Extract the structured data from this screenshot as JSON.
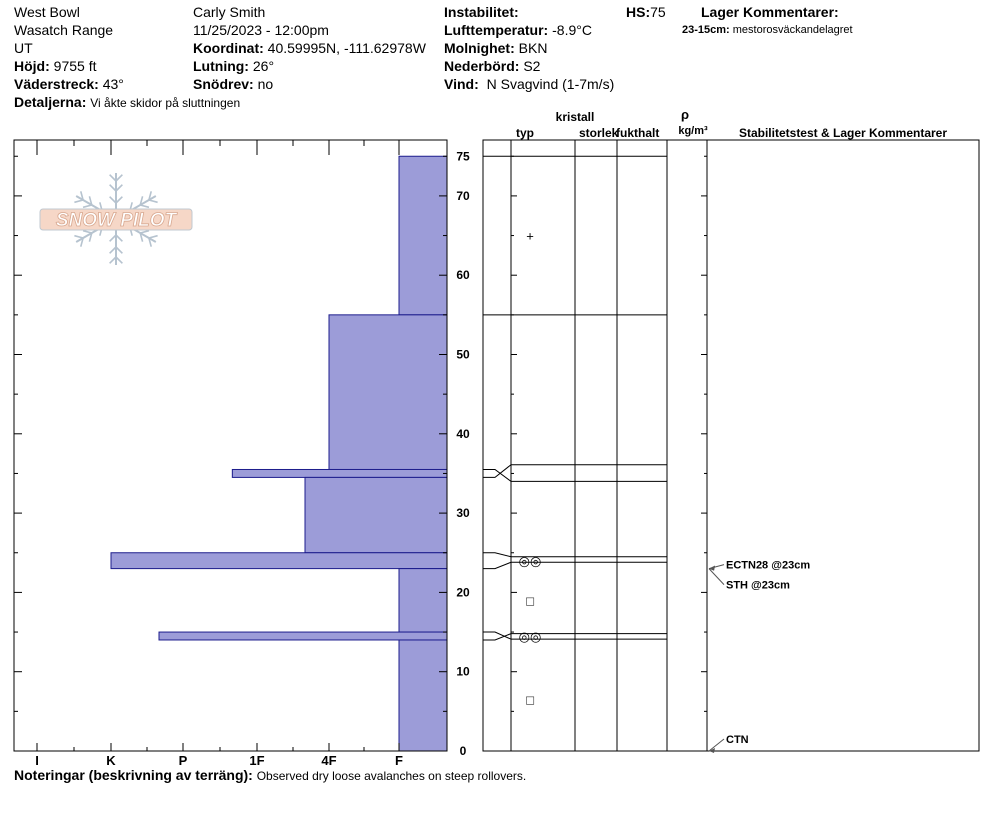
{
  "header": {
    "location": "West Bowl",
    "range": "Wasatch Range",
    "state": "UT",
    "elevation_label": "Höjd:",
    "elevation_value": "9755 ft",
    "aspect_label": "Väderstreck:",
    "aspect_value": "43°",
    "details_label": "Detaljerna:",
    "details_value": "Vi åkte skidor på sluttningen",
    "observer": "Carly Smith",
    "datetime": "11/25/2023 - 12:00pm",
    "coord_label": "Koordinat:",
    "coord_value": "40.59995N, -111.62978W",
    "slope_label": "Lutning:",
    "slope_value": "26°",
    "drift_label": "Snödrev:",
    "drift_value": "no",
    "instability_label": "Instabilitet:",
    "airtemp_label": "Lufttemperatur:",
    "airtemp_value": "-8.9°C",
    "sky_label": "Molnighet:",
    "sky_value": "BKN",
    "precip_label": "Nederbörd:",
    "precip_value": "S2",
    "wind_label": "Vind:",
    "wind_value": "N Svagvind (1-7m/s)",
    "hs_label": "HS:",
    "hs_value": "75",
    "layer_comments_label": "Lager Kommentarer:",
    "layer_comment_depth": "23-15cm:",
    "layer_comment_text": "mestorosväckandelagret"
  },
  "columns": {
    "crystal": "kristall",
    "type": "typ",
    "size": "storlek",
    "moisture": "fukthalt",
    "rho": "ρ",
    "density_unit": "kg/m³",
    "stability": "Stabilitetstest & Lager Kommentarer"
  },
  "chart_data": {
    "type": "bar",
    "orientation": "horizontal",
    "title": "",
    "x_categories": [
      "I",
      "K",
      "P",
      "1F",
      "4F",
      "F"
    ],
    "y_ticks": [
      0,
      10,
      20,
      30,
      40,
      50,
      60,
      70,
      75
    ],
    "ylim": [
      0,
      75
    ],
    "hardness_layers": [
      {
        "top": 75,
        "bottom": 55,
        "hardness": "F"
      },
      {
        "top": 55,
        "bottom": 35.5,
        "hardness": "4F"
      },
      {
        "top": 35.5,
        "bottom": 34.5,
        "hardness": "1F+"
      },
      {
        "top": 34.5,
        "bottom": 25,
        "hardness": "4F+"
      },
      {
        "top": 25,
        "bottom": 23,
        "hardness": "K"
      },
      {
        "top": 23,
        "bottom": 15,
        "hardness": "F"
      },
      {
        "top": 15,
        "bottom": 14,
        "hardness": "P+"
      },
      {
        "top": 14,
        "bottom": 0,
        "hardness": "F"
      }
    ],
    "layer_boundaries": [
      75,
      55,
      35.5,
      34.5,
      25,
      23,
      15,
      14
    ],
    "grain_symbols": [
      {
        "depth": 65,
        "symbol": "+"
      },
      {
        "depth": 24,
        "symbol": "◎◎"
      },
      {
        "depth": 19,
        "symbol": "□"
      },
      {
        "depth": 14.5,
        "symbol": "◎◎"
      },
      {
        "depth": 6.5,
        "symbol": "□"
      }
    ],
    "stability_tests": [
      {
        "depth": 23,
        "label": "ECTN28 @23cm"
      },
      {
        "depth": 23,
        "label": "STH @23cm"
      },
      {
        "depth": 0,
        "label": "CTN"
      }
    ]
  },
  "footer": {
    "notes_label": "Noteringar (beskrivning av terräng):",
    "notes_value": "Observed dry loose avalanches on steep rollovers."
  },
  "logo": {
    "text": "SNOW PILOT"
  },
  "colors": {
    "bar_fill": "#9c9cd8",
    "bar_stroke": "#1c1c8c",
    "logo_fill": "#f6d7c7",
    "logo_stroke": "#c0c8d0",
    "snowflake": "#b6c3cf"
  }
}
